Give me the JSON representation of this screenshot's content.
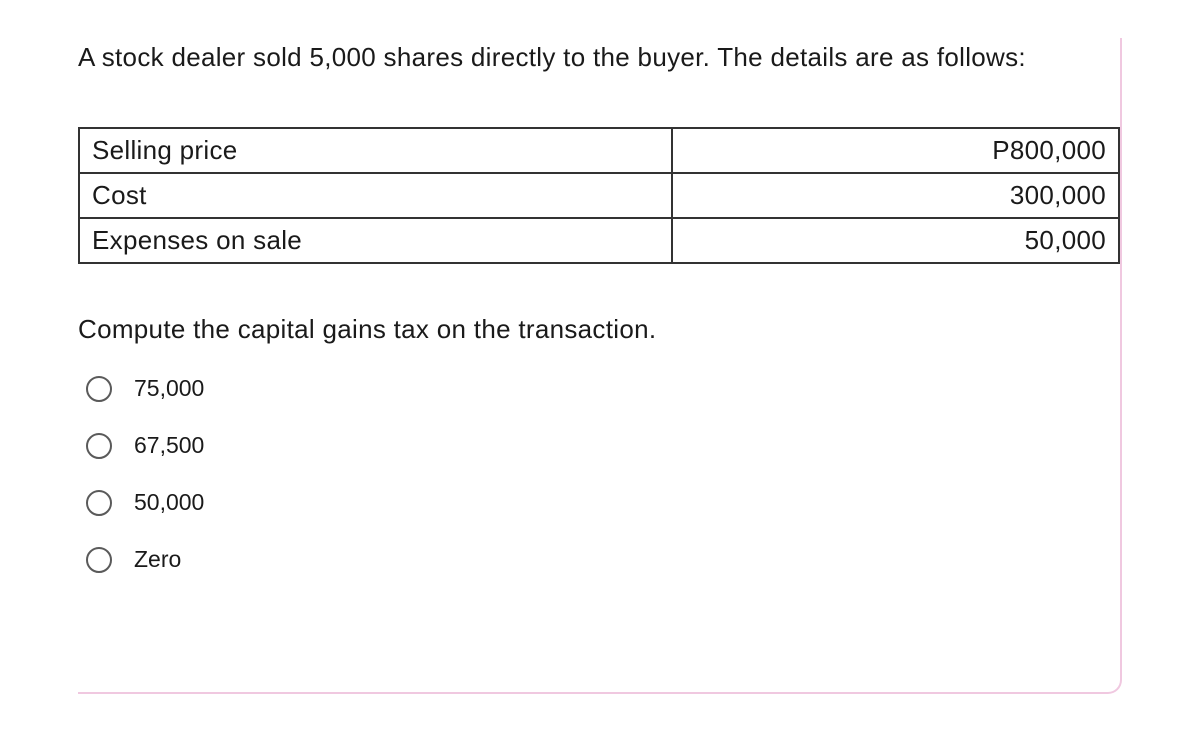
{
  "question": {
    "intro": "A stock dealer sold 5,000 shares directly to the buyer.  The details are as follows:",
    "compute": "Compute the capital gains tax on the transaction."
  },
  "table": {
    "rows": [
      {
        "label": "Selling price",
        "value": "P800,000"
      },
      {
        "label": "Cost",
        "value": "300,000"
      },
      {
        "label": "Expenses on sale",
        "value": "50,000"
      }
    ],
    "border_color": "#333333",
    "label_fontsize": 26,
    "value_fontsize": 26
  },
  "options": [
    {
      "label": "75,000"
    },
    {
      "label": "67,500"
    },
    {
      "label": "50,000"
    },
    {
      "label": "Zero"
    }
  ],
  "colors": {
    "background": "#ffffff",
    "text": "#1a1a1a",
    "radio_border": "#5a5a5a",
    "accent_border": "#f0c8e0"
  },
  "typography": {
    "question_fontsize": 26,
    "option_fontsize": 23,
    "question_font": "Century Gothic",
    "option_font": "Arial"
  }
}
